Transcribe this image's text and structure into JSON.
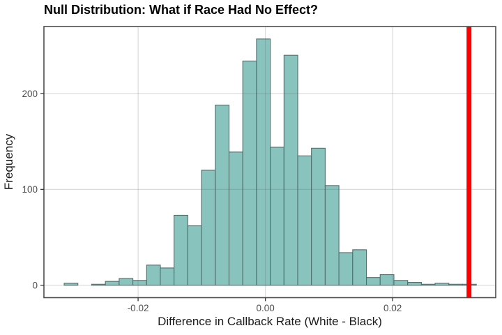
{
  "chart_data": {
    "type": "bar",
    "subtype": "histogram",
    "title": "Null Distribution: What if Race Had No Effect?",
    "xlabel": "Difference in Callback Rate (White - Black)",
    "ylabel": "Frequency",
    "xlim": [
      -0.0348,
      0.0362
    ],
    "ylim": [
      -13,
      270
    ],
    "grid": "on",
    "legend": "none",
    "bin_width": 0.00216,
    "bins": {
      "centers": [
        -0.03054,
        -0.02838,
        -0.02622,
        -0.02406,
        -0.0219,
        -0.01974,
        -0.01758,
        -0.01543,
        -0.01327,
        -0.01111,
        -0.00895,
        -0.00679,
        -0.00463,
        -0.00247,
        -0.00031,
        0.00185,
        0.00401,
        0.00616,
        0.00832,
        0.01048,
        0.01264,
        0.0148,
        0.01696,
        0.01912,
        0.02128,
        0.02344,
        0.0256,
        0.02775,
        0.02991,
        0.03207
      ],
      "frequencies": [
        2,
        0,
        1,
        4,
        7,
        5,
        21,
        18,
        73,
        62,
        120,
        188,
        139,
        234,
        257,
        144,
        240,
        135,
        143,
        104,
        34,
        37,
        8,
        11,
        5,
        3,
        1,
        2,
        1,
        1
      ]
    },
    "x_ticks": {
      "values": [
        -0.02,
        0.0,
        0.02
      ],
      "labels": [
        "-0.02",
        "0.00",
        "0.02"
      ]
    },
    "y_ticks": {
      "values": [
        0,
        100,
        200
      ],
      "labels": [
        "0",
        "100",
        "200"
      ]
    },
    "observed_line": {
      "x": 0.032
    },
    "style": {
      "bar_fill": "#89C3BE",
      "bar_stroke": "#4F6E6A",
      "observed_line_color": "#FF0000",
      "grid_color": "rgba(90,90,90,0.22)",
      "panel_border": "#4D4D4D",
      "tick_color": "#333333",
      "tick_text_color": "#4D4D4D",
      "background": "#FFFFFF"
    }
  }
}
